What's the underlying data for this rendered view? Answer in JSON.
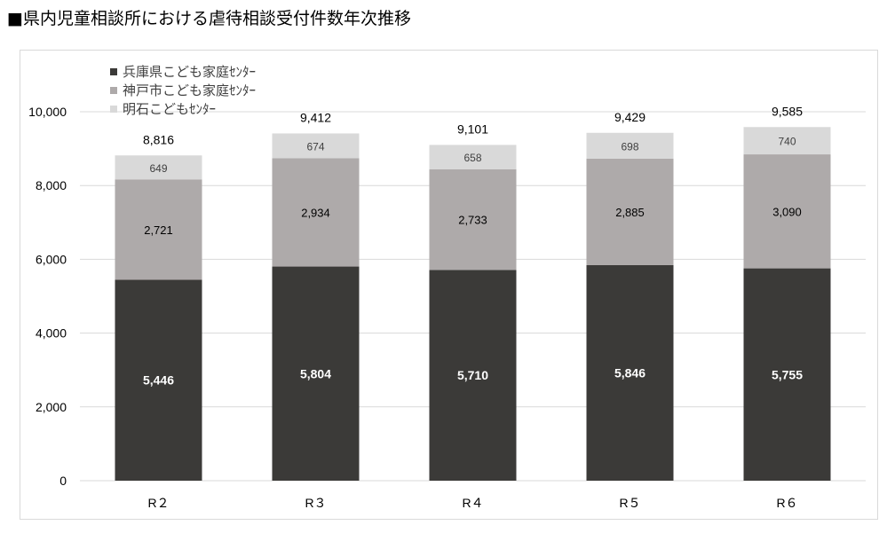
{
  "title": "■県内児童相談所における虐待相談受付件数年次推移",
  "colors": {
    "series_1": "#3b3a38",
    "series_2": "#aeaaaa",
    "series_3": "#d9d9d9",
    "grid": "#d9d9d9",
    "axis_text": "#000000"
  },
  "chart_data": {
    "type": "bar",
    "stacked": true,
    "categories": [
      "R２",
      "R３",
      "R４",
      "R５",
      "R６"
    ],
    "series": [
      {
        "name": "兵庫県こども家庭ｾﾝﾀｰ",
        "values": [
          5446,
          5804,
          5710,
          5846,
          5755
        ],
        "labels": [
          "5,446",
          "5,804",
          "5,710",
          "5,846",
          "5,755"
        ]
      },
      {
        "name": "神戸市こども家庭ｾﾝﾀｰ",
        "values": [
          2721,
          2934,
          2733,
          2885,
          3090
        ],
        "labels": [
          "2,721",
          "2,934",
          "2,733",
          "2,885",
          "3,090"
        ]
      },
      {
        "name": "明石こどもｾﾝﾀｰ",
        "values": [
          649,
          674,
          658,
          698,
          740
        ],
        "labels": [
          "649",
          "674",
          "658",
          "698",
          "740"
        ]
      }
    ],
    "totals": [
      8816,
      9412,
      9101,
      9429,
      9585
    ],
    "total_labels": [
      "8,816",
      "9,412",
      "9,101",
      "9,429",
      "9,585"
    ],
    "ylim": [
      0,
      10000
    ],
    "yticks": [
      0,
      2000,
      4000,
      6000,
      8000,
      10000
    ],
    "ytick_labels": [
      "0",
      "2,000",
      "4,000",
      "6,000",
      "8,000",
      "10,000"
    ],
    "grid": true,
    "legend_position": "top-left"
  }
}
